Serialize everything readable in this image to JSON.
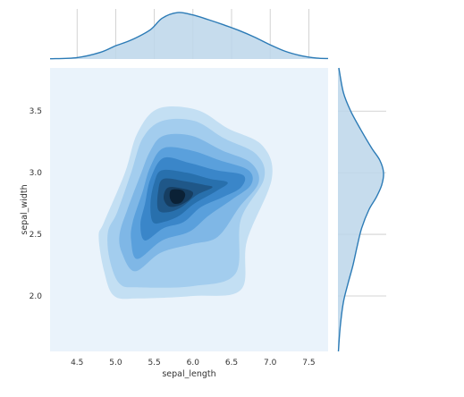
{
  "chart_data": {
    "type": "kde-joint",
    "title": "",
    "xlabel": "sepal_length",
    "ylabel": "sepal_width",
    "xlim": [
      4.15,
      7.75
    ],
    "ylim": [
      1.55,
      3.85
    ],
    "xticks": [
      "4.5",
      "5.0",
      "5.5",
      "6.0",
      "6.5",
      "7.0",
      "7.5"
    ],
    "yticks": [
      "2.0",
      "2.5",
      "3.0",
      "3.5"
    ],
    "grid": true,
    "colors": {
      "background": "#eaf3fb",
      "line": "#2c7bb6",
      "fill": "#bcd6ea",
      "levels": [
        "#c3dff3",
        "#a3cdee",
        "#7fb7e6",
        "#5aa0dc",
        "#3a86c9",
        "#2870ad",
        "#1f5788",
        "#163e62",
        "#0b2136"
      ]
    },
    "x_marginal_density": [
      [
        4.15,
        0.005
      ],
      [
        4.5,
        0.03
      ],
      [
        4.8,
        0.14
      ],
      [
        5.0,
        0.28
      ],
      [
        5.2,
        0.4
      ],
      [
        5.45,
        0.62
      ],
      [
        5.6,
        0.86
      ],
      [
        5.8,
        0.98
      ],
      [
        6.0,
        0.93
      ],
      [
        6.2,
        0.83
      ],
      [
        6.4,
        0.72
      ],
      [
        6.6,
        0.6
      ],
      [
        6.8,
        0.46
      ],
      [
        7.0,
        0.3
      ],
      [
        7.2,
        0.16
      ],
      [
        7.4,
        0.07
      ],
      [
        7.6,
        0.02
      ],
      [
        7.75,
        0.01
      ]
    ],
    "y_marginal_density": [
      [
        1.55,
        0.01
      ],
      [
        1.75,
        0.05
      ],
      [
        1.95,
        0.12
      ],
      [
        2.1,
        0.22
      ],
      [
        2.25,
        0.33
      ],
      [
        2.4,
        0.42
      ],
      [
        2.55,
        0.52
      ],
      [
        2.7,
        0.68
      ],
      [
        2.8,
        0.84
      ],
      [
        2.9,
        0.96
      ],
      [
        3.0,
        1.0
      ],
      [
        3.1,
        0.92
      ],
      [
        3.2,
        0.74
      ],
      [
        3.35,
        0.5
      ],
      [
        3.5,
        0.28
      ],
      [
        3.65,
        0.12
      ],
      [
        3.85,
        0.02
      ]
    ],
    "contour_levels": [
      [
        [
          5.55,
          3.52
        ],
        [
          6.05,
          3.51
        ],
        [
          6.45,
          3.36
        ],
        [
          6.9,
          3.22
        ],
        [
          7.02,
          2.95
        ],
        [
          6.7,
          2.45
        ],
        [
          6.62,
          2.05
        ],
        [
          6.0,
          2.0
        ],
        [
          5.3,
          1.98
        ],
        [
          4.98,
          2.0
        ],
        [
          4.85,
          2.2
        ],
        [
          4.78,
          2.48
        ],
        [
          4.85,
          2.6
        ],
        [
          5.12,
          3.0
        ],
        [
          5.28,
          3.32
        ]
      ],
      [
        [
          5.6,
          3.42
        ],
        [
          6.02,
          3.42
        ],
        [
          6.4,
          3.28
        ],
        [
          6.82,
          3.15
        ],
        [
          6.92,
          2.95
        ],
        [
          6.62,
          2.62
        ],
        [
          6.55,
          2.18
        ],
        [
          6.0,
          2.08
        ],
        [
          5.3,
          2.07
        ],
        [
          5.05,
          2.1
        ],
        [
          4.92,
          2.3
        ],
        [
          4.9,
          2.52
        ],
        [
          5.02,
          2.68
        ],
        [
          5.2,
          3.0
        ],
        [
          5.35,
          3.28
        ]
      ],
      [
        [
          5.62,
          3.3
        ],
        [
          5.98,
          3.3
        ],
        [
          6.38,
          3.18
        ],
        [
          6.75,
          3.08
        ],
        [
          6.85,
          2.92
        ],
        [
          6.6,
          2.72
        ],
        [
          6.32,
          2.48
        ],
        [
          5.98,
          2.42
        ],
        [
          5.58,
          2.35
        ],
        [
          5.25,
          2.2
        ],
        [
          5.08,
          2.35
        ],
        [
          5.05,
          2.5
        ],
        [
          5.15,
          2.7
        ],
        [
          5.32,
          2.98
        ],
        [
          5.45,
          3.18
        ]
      ],
      [
        [
          5.62,
          3.2
        ],
        [
          5.98,
          3.18
        ],
        [
          6.35,
          3.1
        ],
        [
          6.72,
          3.02
        ],
        [
          6.75,
          2.9
        ],
        [
          6.5,
          2.78
        ],
        [
          6.2,
          2.65
        ],
        [
          5.95,
          2.52
        ],
        [
          5.6,
          2.45
        ],
        [
          5.28,
          2.3
        ],
        [
          5.2,
          2.45
        ],
        [
          5.22,
          2.6
        ],
        [
          5.35,
          2.85
        ],
        [
          5.45,
          3.05
        ]
      ],
      [
        [
          5.62,
          3.12
        ],
        [
          5.95,
          3.08
        ],
        [
          6.3,
          3.02
        ],
        [
          6.65,
          2.98
        ],
        [
          6.62,
          2.88
        ],
        [
          6.38,
          2.8
        ],
        [
          6.1,
          2.72
        ],
        [
          5.88,
          2.6
        ],
        [
          5.62,
          2.55
        ],
        [
          5.38,
          2.45
        ],
        [
          5.32,
          2.58
        ],
        [
          5.38,
          2.75
        ],
        [
          5.45,
          2.95
        ]
      ],
      [
        [
          5.6,
          3.02
        ],
        [
          5.92,
          3.0
        ],
        [
          6.22,
          2.95
        ],
        [
          6.45,
          2.92
        ],
        [
          6.3,
          2.85
        ],
        [
          6.02,
          2.75
        ],
        [
          5.82,
          2.65
        ],
        [
          5.62,
          2.6
        ],
        [
          5.48,
          2.6
        ],
        [
          5.45,
          2.75
        ],
        [
          5.5,
          2.92
        ]
      ],
      [
        [
          5.62,
          2.95
        ],
        [
          5.9,
          2.93
        ],
        [
          6.15,
          2.9
        ],
        [
          6.25,
          2.88
        ],
        [
          6.05,
          2.82
        ],
        [
          5.85,
          2.72
        ],
        [
          5.68,
          2.68
        ],
        [
          5.55,
          2.7
        ],
        [
          5.55,
          2.85
        ]
      ],
      [
        [
          5.68,
          2.88
        ],
        [
          5.88,
          2.87
        ],
        [
          6.0,
          2.84
        ],
        [
          5.95,
          2.78
        ],
        [
          5.8,
          2.73
        ],
        [
          5.68,
          2.73
        ],
        [
          5.62,
          2.8
        ]
      ],
      [
        [
          5.72,
          2.86
        ],
        [
          5.85,
          2.86
        ],
        [
          5.9,
          2.82
        ],
        [
          5.85,
          2.76
        ],
        [
          5.75,
          2.75
        ],
        [
          5.7,
          2.8
        ]
      ]
    ]
  }
}
